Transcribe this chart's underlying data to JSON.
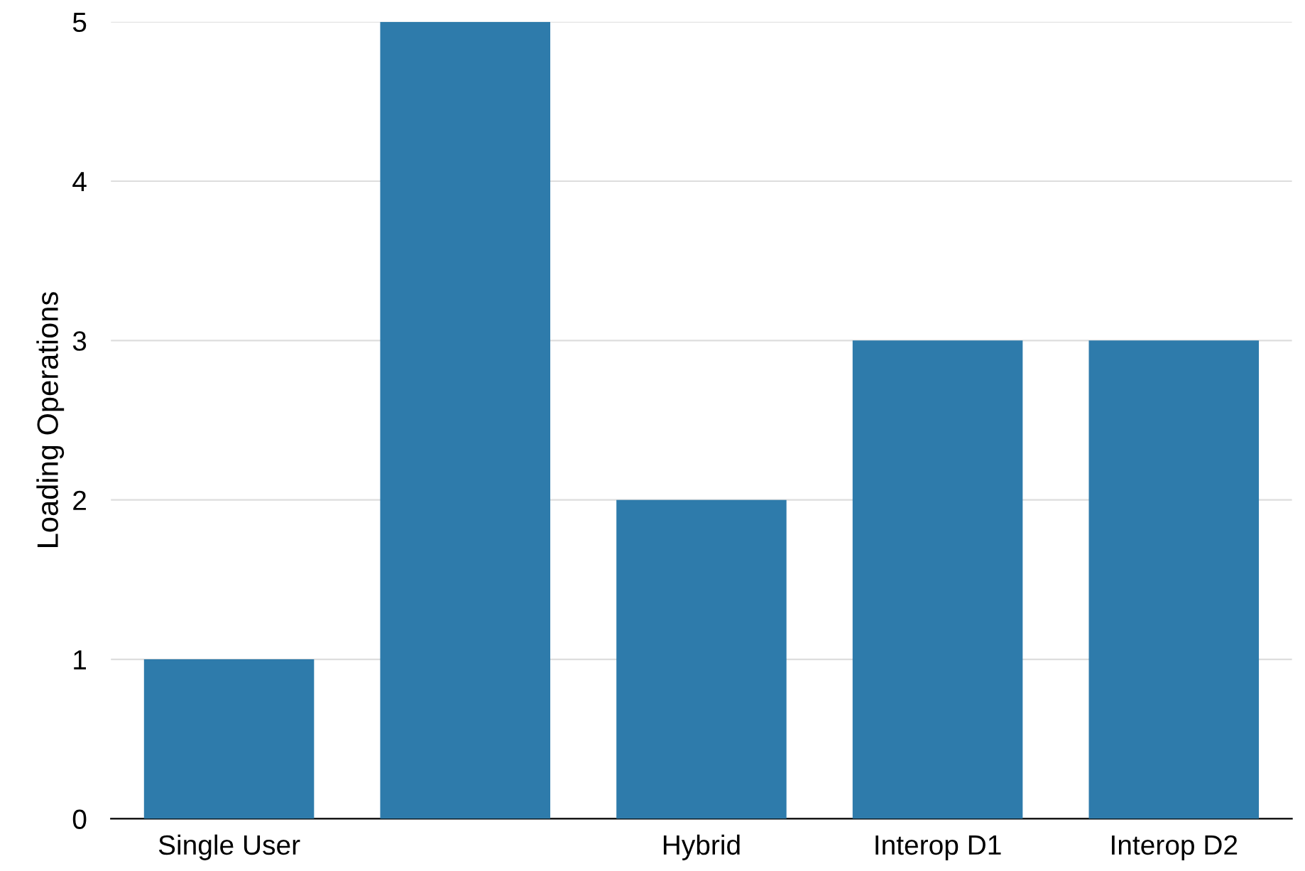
{
  "chart_data": {
    "type": "bar",
    "ylabel": "Loading Operations",
    "categories": [
      "Single User",
      null,
      "Hybrid",
      "Interop D1",
      "Interop D2"
    ],
    "values": [
      1,
      5,
      2,
      3,
      3
    ],
    "color": "#2e7bab",
    "ylim": [
      0,
      5
    ],
    "yticks": [
      0,
      1,
      2,
      3,
      4,
      5
    ],
    "grid": "y"
  }
}
